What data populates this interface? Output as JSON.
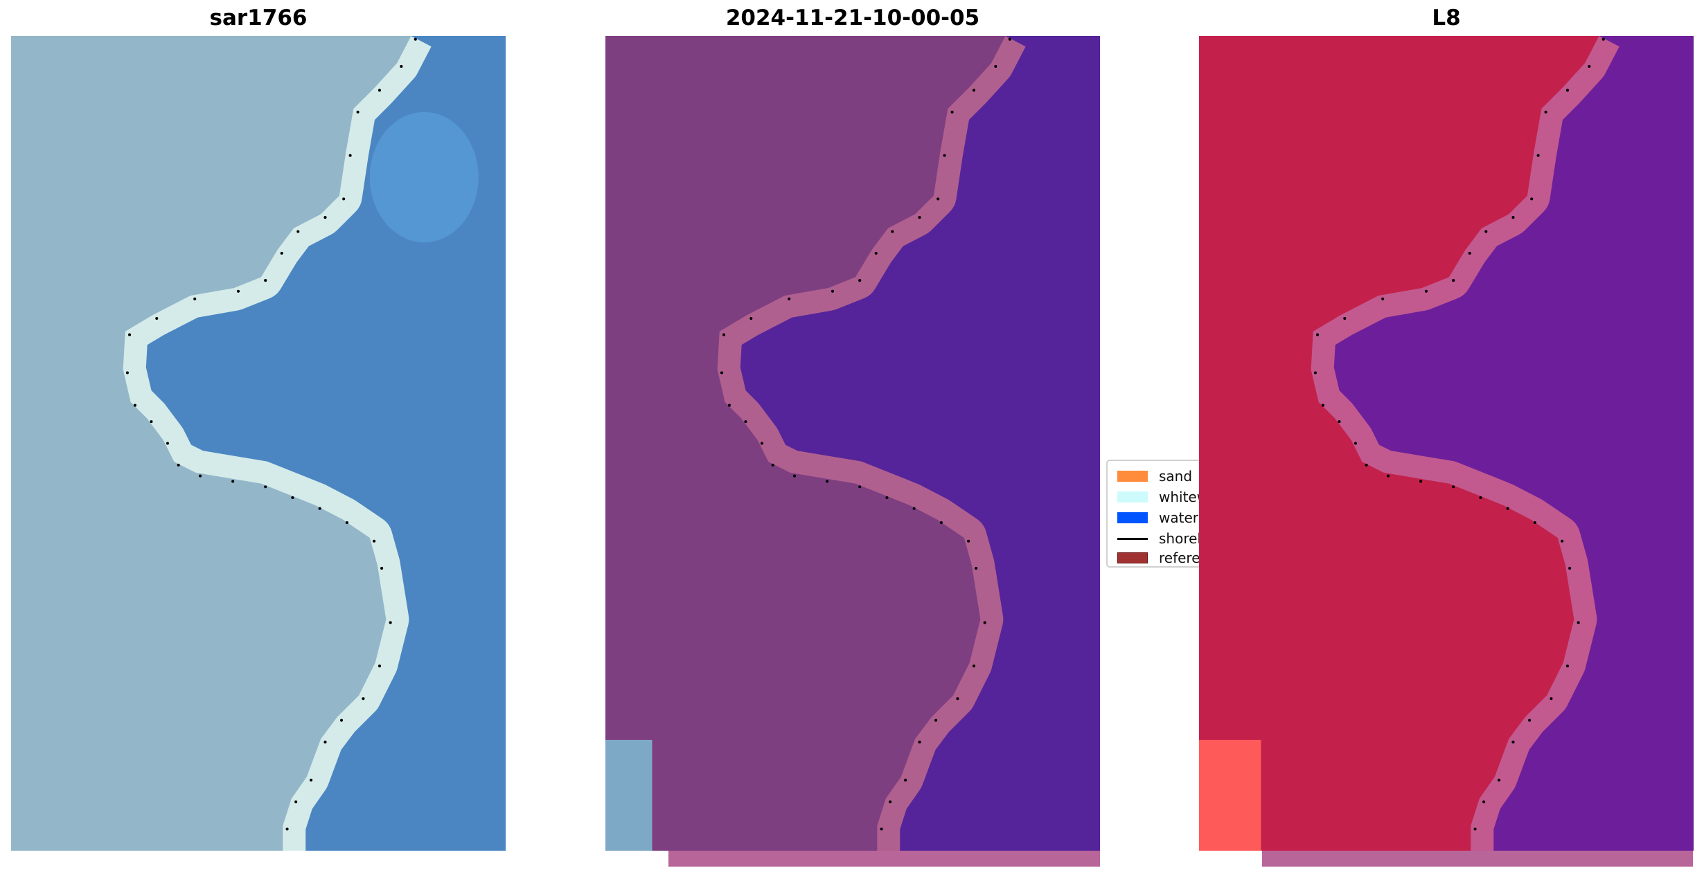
{
  "panels": [
    {
      "title": "sar1766",
      "colors": {
        "land": "#93b6c9",
        "band": "#d5ebe9",
        "water": "#4b86c3",
        "water_hi": "#5aa4dc"
      }
    },
    {
      "title": "2024-11-21-10-00-05",
      "colors": {
        "land": "#7e3f80",
        "band": "#b0608f",
        "water": "#55249a",
        "corner": "#7ea9c6",
        "strip": "#b8659a"
      }
    },
    {
      "title": "L8",
      "colors": {
        "land": "#c3214b",
        "band": "#c25a90",
        "water": "#6d1f9b",
        "corner": "#ff5a5a",
        "strip": "#b8659a"
      }
    }
  ],
  "legend": {
    "items": [
      {
        "label": "sand",
        "color": "#ff8c3c",
        "kind": "patch"
      },
      {
        "label": "whitew",
        "color": "#cdfbfb",
        "kind": "patch"
      },
      {
        "label": "water",
        "color": "#0055ff",
        "kind": "patch"
      },
      {
        "label": "shoreli",
        "color": "#000000",
        "kind": "line"
      },
      {
        "label": "referen",
        "color": "#a03232",
        "kind": "patch"
      }
    ]
  }
}
